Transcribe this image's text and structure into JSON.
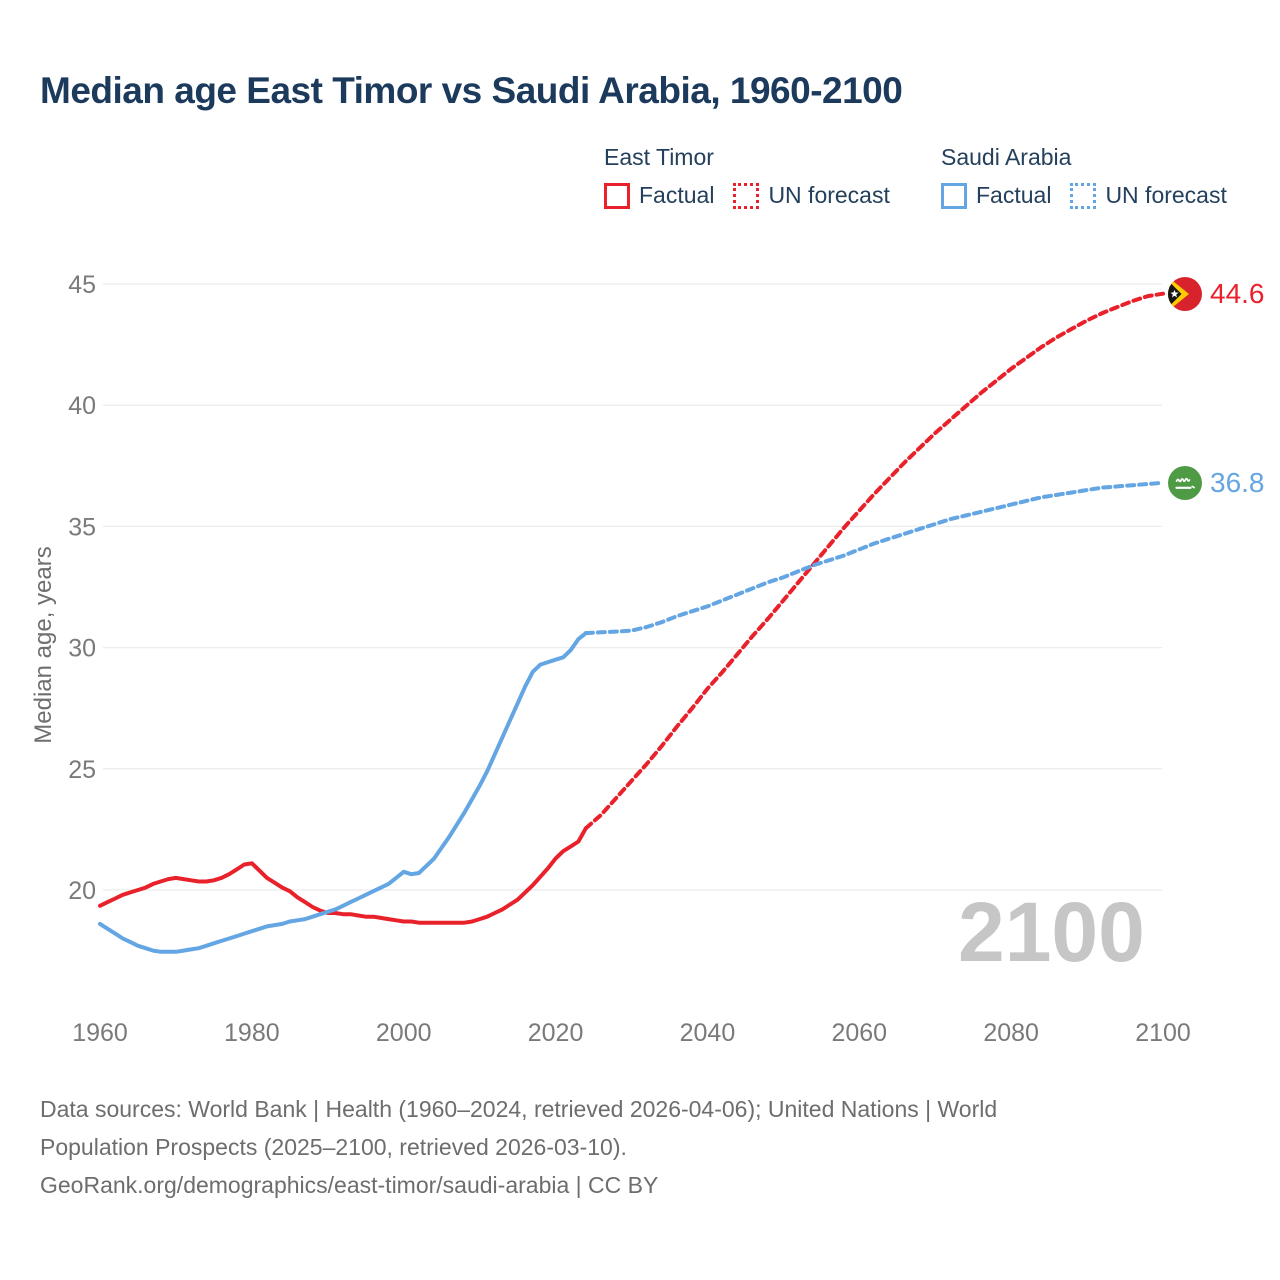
{
  "header": {
    "title": "Median age East Timor vs Saudi Arabia, 1960-2100"
  },
  "legend": {
    "groups": [
      {
        "name": "East Timor",
        "color": "#e8212b",
        "items": [
          {
            "label": "Factual",
            "style": "solid"
          },
          {
            "label": "UN forecast",
            "style": "dotted"
          }
        ]
      },
      {
        "name": "Saudi Arabia",
        "color": "#64a5e3",
        "items": [
          {
            "label": "Factual",
            "style": "solid"
          },
          {
            "label": "UN forecast",
            "style": "dotted"
          }
        ]
      }
    ]
  },
  "chart_data": {
    "type": "line",
    "title": "Median age East Timor vs Saudi Arabia, 1960-2100",
    "xlabel": "",
    "ylabel": "Median age, years",
    "xlim": [
      1960,
      2100
    ],
    "ylim": [
      17,
      46
    ],
    "xticks": [
      1960,
      1980,
      2000,
      2020,
      2040,
      2060,
      2080,
      2100
    ],
    "yticks": [
      20,
      25,
      30,
      35,
      40,
      45
    ],
    "grid": "horizontal",
    "watermark": "2100",
    "series": [
      {
        "id": "east-timor-factual",
        "name": "East Timor — Factual",
        "color": "#e8212b",
        "dashed": false,
        "points": [
          [
            1960,
            19.35
          ],
          [
            1961,
            19.5
          ],
          [
            1962,
            19.65
          ],
          [
            1963,
            19.8
          ],
          [
            1964,
            19.9
          ],
          [
            1965,
            20.0
          ],
          [
            1966,
            20.1
          ],
          [
            1967,
            20.25
          ],
          [
            1968,
            20.35
          ],
          [
            1969,
            20.45
          ],
          [
            1970,
            20.5
          ],
          [
            1971,
            20.45
          ],
          [
            1972,
            20.4
          ],
          [
            1973,
            20.35
          ],
          [
            1974,
            20.35
          ],
          [
            1975,
            20.4
          ],
          [
            1976,
            20.5
          ],
          [
            1977,
            20.65
          ],
          [
            1978,
            20.85
          ],
          [
            1979,
            21.05
          ],
          [
            1980,
            21.1
          ],
          [
            1981,
            20.8
          ],
          [
            1982,
            20.5
          ],
          [
            1983,
            20.3
          ],
          [
            1984,
            20.1
          ],
          [
            1985,
            19.95
          ],
          [
            1986,
            19.7
          ],
          [
            1987,
            19.5
          ],
          [
            1988,
            19.3
          ],
          [
            1989,
            19.15
          ],
          [
            1990,
            19.05
          ],
          [
            1991,
            19.05
          ],
          [
            1992,
            19.0
          ],
          [
            1993,
            19.0
          ],
          [
            1994,
            18.95
          ],
          [
            1995,
            18.9
          ],
          [
            1996,
            18.9
          ],
          [
            1997,
            18.85
          ],
          [
            1998,
            18.8
          ],
          [
            1999,
            18.75
          ],
          [
            2000,
            18.7
          ],
          [
            2001,
            18.7
          ],
          [
            2002,
            18.65
          ],
          [
            2003,
            18.65
          ],
          [
            2004,
            18.65
          ],
          [
            2005,
            18.65
          ],
          [
            2006,
            18.65
          ],
          [
            2007,
            18.65
          ],
          [
            2008,
            18.65
          ],
          [
            2009,
            18.7
          ],
          [
            2010,
            18.8
          ],
          [
            2011,
            18.9
          ],
          [
            2012,
            19.05
          ],
          [
            2013,
            19.2
          ],
          [
            2014,
            19.4
          ],
          [
            2015,
            19.6
          ],
          [
            2016,
            19.9
          ],
          [
            2017,
            20.2
          ],
          [
            2018,
            20.55
          ],
          [
            2019,
            20.9
          ],
          [
            2020,
            21.3
          ],
          [
            2021,
            21.6
          ],
          [
            2022,
            21.8
          ],
          [
            2023,
            22.0
          ],
          [
            2024,
            22.55
          ]
        ]
      },
      {
        "id": "east-timor-forecast",
        "name": "East Timor — UN forecast",
        "color": "#e8212b",
        "dashed": true,
        "points": [
          [
            2024,
            22.55
          ],
          [
            2026,
            23.1
          ],
          [
            2028,
            23.8
          ],
          [
            2030,
            24.5
          ],
          [
            2032,
            25.2
          ],
          [
            2034,
            25.95
          ],
          [
            2036,
            26.75
          ],
          [
            2038,
            27.5
          ],
          [
            2040,
            28.3
          ],
          [
            2042,
            29.0
          ],
          [
            2044,
            29.75
          ],
          [
            2046,
            30.5
          ],
          [
            2048,
            31.2
          ],
          [
            2050,
            31.95
          ],
          [
            2052,
            32.7
          ],
          [
            2054,
            33.45
          ],
          [
            2056,
            34.2
          ],
          [
            2058,
            34.95
          ],
          [
            2060,
            35.65
          ],
          [
            2062,
            36.35
          ],
          [
            2064,
            37.0
          ],
          [
            2066,
            37.65
          ],
          [
            2068,
            38.25
          ],
          [
            2070,
            38.85
          ],
          [
            2072,
            39.4
          ],
          [
            2074,
            39.95
          ],
          [
            2076,
            40.5
          ],
          [
            2078,
            41.0
          ],
          [
            2080,
            41.5
          ],
          [
            2082,
            41.95
          ],
          [
            2084,
            42.4
          ],
          [
            2086,
            42.8
          ],
          [
            2088,
            43.15
          ],
          [
            2090,
            43.5
          ],
          [
            2092,
            43.8
          ],
          [
            2094,
            44.05
          ],
          [
            2096,
            44.3
          ],
          [
            2098,
            44.5
          ],
          [
            2100,
            44.6
          ]
        ]
      },
      {
        "id": "saudi-arabia-factual",
        "name": "Saudi Arabia — Factual",
        "color": "#64a5e3",
        "dashed": false,
        "points": [
          [
            1960,
            18.6
          ],
          [
            1961,
            18.4
          ],
          [
            1962,
            18.2
          ],
          [
            1963,
            18.0
          ],
          [
            1964,
            17.85
          ],
          [
            1965,
            17.7
          ],
          [
            1966,
            17.6
          ],
          [
            1967,
            17.5
          ],
          [
            1968,
            17.45
          ],
          [
            1969,
            17.45
          ],
          [
            1970,
            17.45
          ],
          [
            1971,
            17.5
          ],
          [
            1972,
            17.55
          ],
          [
            1973,
            17.6
          ],
          [
            1974,
            17.7
          ],
          [
            1975,
            17.8
          ],
          [
            1976,
            17.9
          ],
          [
            1977,
            18.0
          ],
          [
            1978,
            18.1
          ],
          [
            1979,
            18.2
          ],
          [
            1980,
            18.3
          ],
          [
            1981,
            18.4
          ],
          [
            1982,
            18.5
          ],
          [
            1983,
            18.55
          ],
          [
            1984,
            18.6
          ],
          [
            1985,
            18.7
          ],
          [
            1986,
            18.75
          ],
          [
            1987,
            18.8
          ],
          [
            1988,
            18.9
          ],
          [
            1989,
            19.0
          ],
          [
            1990,
            19.1
          ],
          [
            1991,
            19.2
          ],
          [
            1992,
            19.35
          ],
          [
            1993,
            19.5
          ],
          [
            1994,
            19.65
          ],
          [
            1995,
            19.8
          ],
          [
            1996,
            19.95
          ],
          [
            1997,
            20.1
          ],
          [
            1998,
            20.25
          ],
          [
            1999,
            20.5
          ],
          [
            2000,
            20.75
          ],
          [
            2001,
            20.65
          ],
          [
            2002,
            20.7
          ],
          [
            2003,
            21.0
          ],
          [
            2004,
            21.3
          ],
          [
            2005,
            21.75
          ],
          [
            2006,
            22.2
          ],
          [
            2007,
            22.7
          ],
          [
            2008,
            23.2
          ],
          [
            2009,
            23.75
          ],
          [
            2010,
            24.3
          ],
          [
            2011,
            24.9
          ],
          [
            2012,
            25.6
          ],
          [
            2013,
            26.3
          ],
          [
            2014,
            27.0
          ],
          [
            2015,
            27.7
          ],
          [
            2016,
            28.4
          ],
          [
            2017,
            29.0
          ],
          [
            2018,
            29.3
          ],
          [
            2019,
            29.4
          ],
          [
            2020,
            29.5
          ],
          [
            2021,
            29.6
          ],
          [
            2022,
            29.9
          ],
          [
            2023,
            30.35
          ],
          [
            2024,
            30.6
          ]
        ]
      },
      {
        "id": "saudi-arabia-forecast",
        "name": "Saudi Arabia — UN forecast",
        "color": "#64a5e3",
        "dashed": true,
        "points": [
          [
            2024,
            30.6
          ],
          [
            2026,
            30.63
          ],
          [
            2028,
            30.66
          ],
          [
            2030,
            30.7
          ],
          [
            2032,
            30.85
          ],
          [
            2034,
            31.05
          ],
          [
            2036,
            31.3
          ],
          [
            2038,
            31.5
          ],
          [
            2040,
            31.7
          ],
          [
            2042,
            31.95
          ],
          [
            2044,
            32.2
          ],
          [
            2046,
            32.45
          ],
          [
            2048,
            32.7
          ],
          [
            2050,
            32.9
          ],
          [
            2052,
            33.15
          ],
          [
            2054,
            33.4
          ],
          [
            2056,
            33.6
          ],
          [
            2058,
            33.8
          ],
          [
            2060,
            34.05
          ],
          [
            2062,
            34.3
          ],
          [
            2064,
            34.5
          ],
          [
            2066,
            34.7
          ],
          [
            2068,
            34.9
          ],
          [
            2070,
            35.1
          ],
          [
            2072,
            35.3
          ],
          [
            2074,
            35.45
          ],
          [
            2076,
            35.6
          ],
          [
            2078,
            35.75
          ],
          [
            2080,
            35.9
          ],
          [
            2082,
            36.05
          ],
          [
            2084,
            36.2
          ],
          [
            2086,
            36.3
          ],
          [
            2088,
            36.4
          ],
          [
            2090,
            36.5
          ],
          [
            2092,
            36.6
          ],
          [
            2094,
            36.65
          ],
          [
            2096,
            36.7
          ],
          [
            2098,
            36.75
          ],
          [
            2100,
            36.8
          ]
        ]
      }
    ],
    "end_labels": [
      {
        "series": "East Timor",
        "year": 2100,
        "value": "44.6",
        "color": "#e8212b",
        "flag": "east-timor-flag"
      },
      {
        "series": "Saudi Arabia",
        "year": 2100,
        "value": "36.8",
        "color": "#64a5e3",
        "flag": "saudi-arabia-flag"
      }
    ]
  },
  "footer": {
    "lines": [
      "Data sources: World Bank | Health (1960–2024, retrieved 2026-04-06); United Nations | World",
      "Population Prospects (2025–2100, retrieved 2026-03-10).",
      "GeoRank.org/demographics/east-timor/saudi-arabia | CC BY"
    ]
  }
}
